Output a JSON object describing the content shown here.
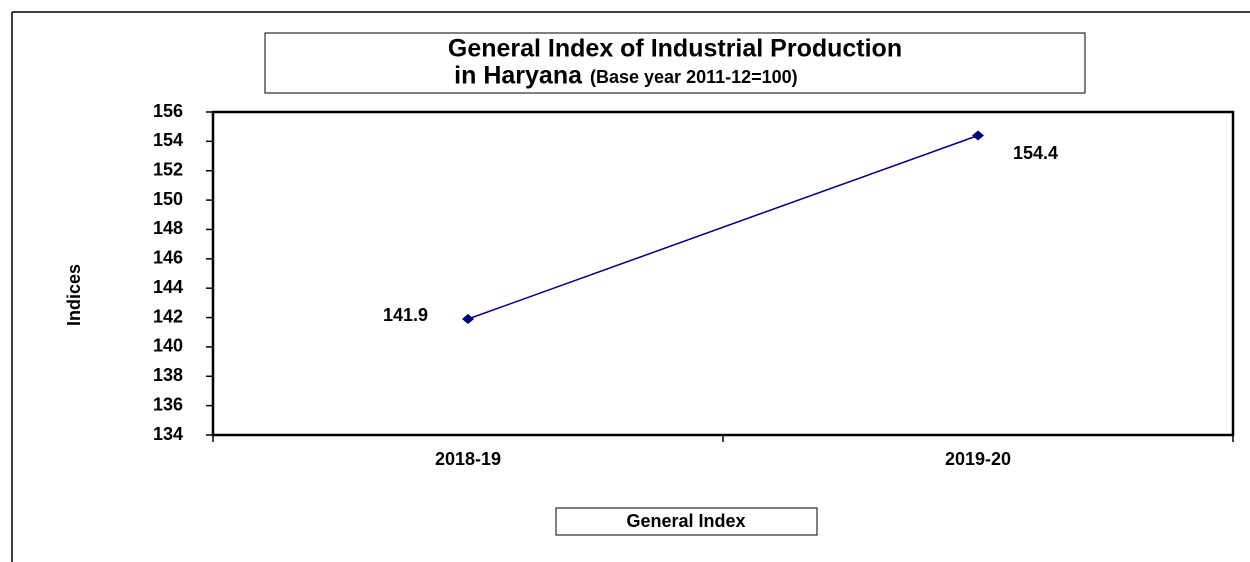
{
  "chart_data": {
    "type": "line",
    "title": [
      "General Index of Industrial Production",
      "in Haryana"
    ],
    "subtitle": "(Base year 2011-12=100)",
    "y_label": "Indices",
    "categories": [
      "2018-19",
      "2019-20"
    ],
    "series": [
      {
        "name": "General Index",
        "color": "#000080",
        "values": [
          141.9,
          154.4
        ]
      }
    ],
    "ylim": [
      134,
      156
    ],
    "yticks": [
      134,
      136,
      138,
      140,
      142,
      144,
      146,
      148,
      150,
      152,
      154,
      156
    ],
    "data_labels": true,
    "legend": "bottom"
  }
}
